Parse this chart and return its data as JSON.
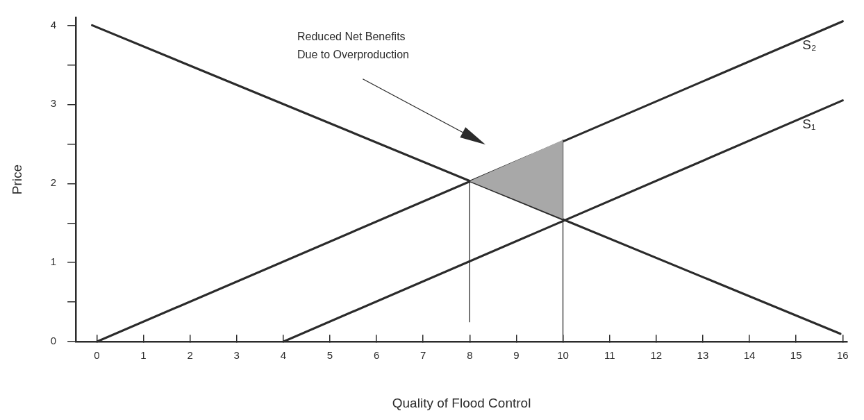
{
  "chart_data": {
    "type": "line",
    "xlabel": "Quality of Flood Control",
    "ylabel": "Price",
    "series": [
      {
        "color": "#2b2b2b",
        "x": [
          -0.1,
          15.95
        ],
        "values": [
          4,
          0.1
        ]
      },
      {
        "name": "S₂",
        "color": "#2b2b2b",
        "x": [
          0,
          16
        ],
        "values": [
          0,
          4.05
        ]
      },
      {
        "name": "S₁",
        "color": "#2b2b2b",
        "x": [
          4,
          16
        ],
        "values": [
          0,
          3.05
        ]
      },
      {
        "color": "#2b2b2b",
        "x": [
          8,
          8
        ],
        "values": [
          0.25,
          2.03
        ]
      },
      {
        "color": "#2b2b2b",
        "x": [
          10,
          10
        ],
        "values": [
          0,
          2.55
        ]
      },
      {
        "type": "area",
        "color": "#a8a8a8",
        "x": [
          8,
          10,
          10,
          8
        ],
        "values": [
          2.03,
          2.55,
          1.55,
          2.03
        ]
      }
    ],
    "annotations": [
      "Reduced Net Benefits\nDue to Overproduction"
    ],
    "xlim": [
      -0.45,
      16.1
    ],
    "ylim": [
      0,
      4.1
    ],
    "xticks": [
      0,
      1,
      2,
      3,
      4,
      5,
      6,
      7,
      8,
      9,
      10,
      11,
      12,
      13,
      14,
      15,
      16
    ],
    "yticks": [
      0,
      {
        "value": 0.5,
        "label": null
      },
      1,
      {
        "value": 1.5,
        "label": null
      },
      2,
      {
        "value": 2.5,
        "label": null
      },
      3,
      {
        "value": 3.5,
        "label": null
      },
      4
    ],
    "grid": false,
    "legend": false
  }
}
